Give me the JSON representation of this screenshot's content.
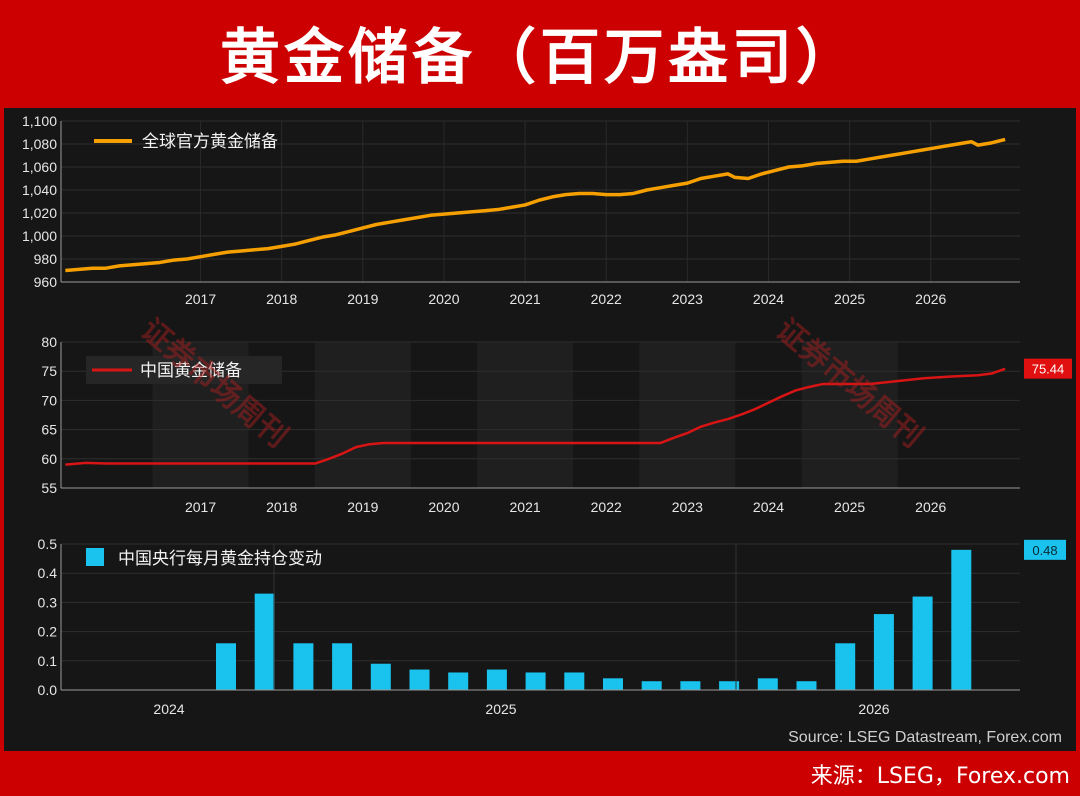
{
  "header": {
    "title": "黄金储备（百万盎司）"
  },
  "source_note": "Source: LSEG Datastream, Forex.com",
  "footer": {
    "credit": "来源：LSEG，Forex.com"
  },
  "watermark": "证券市场周刊",
  "colors": {
    "gold": "#f5a000",
    "red": "#d91414",
    "cyan": "#19c3ee",
    "page_bg": "#cc0000",
    "chart_bg": "#161616"
  },
  "chart_data": [
    {
      "type": "line",
      "series": [
        {
          "name": "全球官方黄金储备",
          "color": "#f5a000"
        }
      ],
      "x_ticks": [
        "2017",
        "2018",
        "2019",
        "2020",
        "2021",
        "2022",
        "2023",
        "2024",
        "2025",
        "2026"
      ],
      "y_ticks": [
        "960",
        "980",
        "1,000",
        "1,020",
        "1,040",
        "1,060",
        "1,080",
        "1,100"
      ],
      "ylim": [
        960,
        1100
      ],
      "points": [
        [
          "2016-05",
          970
        ],
        [
          "2016-07",
          971
        ],
        [
          "2016-09",
          972
        ],
        [
          "2016-11",
          972
        ],
        [
          "2017-01",
          974
        ],
        [
          "2017-03",
          975
        ],
        [
          "2017-05",
          976
        ],
        [
          "2017-07",
          977
        ],
        [
          "2017-09",
          979
        ],
        [
          "2017-11",
          980
        ],
        [
          "2018-01",
          982
        ],
        [
          "2018-03",
          984
        ],
        [
          "2018-05",
          986
        ],
        [
          "2018-07",
          987
        ],
        [
          "2018-09",
          988
        ],
        [
          "2018-11",
          989
        ],
        [
          "2019-01",
          991
        ],
        [
          "2019-03",
          993
        ],
        [
          "2019-05",
          996
        ],
        [
          "2019-07",
          999
        ],
        [
          "2019-09",
          1001
        ],
        [
          "2019-11",
          1004
        ],
        [
          "2020-01",
          1007
        ],
        [
          "2020-03",
          1010
        ],
        [
          "2020-05",
          1012
        ],
        [
          "2020-07",
          1014
        ],
        [
          "2020-09",
          1016
        ],
        [
          "2020-11",
          1018
        ],
        [
          "2021-01",
          1019
        ],
        [
          "2021-03",
          1020
        ],
        [
          "2021-05",
          1021
        ],
        [
          "2021-07",
          1022
        ],
        [
          "2021-09",
          1023
        ],
        [
          "2021-11",
          1025
        ],
        [
          "2022-01",
          1027
        ],
        [
          "2022-03",
          1031
        ],
        [
          "2022-05",
          1034
        ],
        [
          "2022-07",
          1036
        ],
        [
          "2022-09",
          1037
        ],
        [
          "2022-11",
          1037
        ],
        [
          "2023-01",
          1036
        ],
        [
          "2023-03",
          1036
        ],
        [
          "2023-05",
          1037
        ],
        [
          "2023-07",
          1040
        ],
        [
          "2023-09",
          1042
        ],
        [
          "2023-11",
          1044
        ],
        [
          "2024-01",
          1046
        ],
        [
          "2024-03",
          1050
        ],
        [
          "2024-05",
          1052
        ],
        [
          "2024-07",
          1054
        ],
        [
          "2024-08",
          1051
        ],
        [
          "2024-10",
          1050
        ],
        [
          "2024-12",
          1054
        ],
        [
          "2025-02",
          1057
        ],
        [
          "2025-04",
          1060
        ],
        [
          "2025-06",
          1061
        ],
        [
          "2025-08",
          1063
        ],
        [
          "2025-10",
          1064
        ],
        [
          "2025-12",
          1065
        ],
        [
          "2026-02",
          1065
        ],
        [
          "2026-04",
          1067
        ],
        [
          "2026-06",
          1069
        ],
        [
          "2026-08",
          1071
        ],
        [
          "2026-10",
          1073
        ],
        [
          "2026-12",
          1075
        ],
        [
          "2027-02",
          1077
        ],
        [
          "2027-04",
          1079
        ],
        [
          "2027-06",
          1081
        ],
        [
          "2027-07",
          1082
        ],
        [
          "2027-08",
          1079
        ],
        [
          "2027-10",
          1081
        ],
        [
          "2027-12",
          1084
        ]
      ]
    },
    {
      "type": "line",
      "series": [
        {
          "name": "中国黄金储备",
          "color": "#d91414"
        }
      ],
      "x_ticks": [
        "2017",
        "2018",
        "2019",
        "2020",
        "2021",
        "2022",
        "2023",
        "2024",
        "2025",
        "2026"
      ],
      "y_ticks": [
        "55",
        "60",
        "65",
        "70",
        "75",
        "80"
      ],
      "ylim": [
        55,
        80
      ],
      "last_value_label": "75.44",
      "points": [
        [
          "2016-05",
          59.0
        ],
        [
          "2016-08",
          59.3
        ],
        [
          "2016-11",
          59.2
        ],
        [
          "2017-03",
          59.2
        ],
        [
          "2017-07",
          59.2
        ],
        [
          "2017-11",
          59.2
        ],
        [
          "2018-03",
          59.2
        ],
        [
          "2018-07",
          59.2
        ],
        [
          "2018-11",
          59.2
        ],
        [
          "2019-03",
          59.2
        ],
        [
          "2019-06",
          59.2
        ],
        [
          "2019-08",
          60.0
        ],
        [
          "2019-10",
          60.9
        ],
        [
          "2019-12",
          62.0
        ],
        [
          "2020-02",
          62.5
        ],
        [
          "2020-04",
          62.7
        ],
        [
          "2020-08",
          62.7
        ],
        [
          "2021-01",
          62.7
        ],
        [
          "2021-08",
          62.7
        ],
        [
          "2022-03",
          62.7
        ],
        [
          "2022-10",
          62.7
        ],
        [
          "2023-05",
          62.7
        ],
        [
          "2023-09",
          62.7
        ],
        [
          "2023-11",
          63.6
        ],
        [
          "2024-01",
          64.4
        ],
        [
          "2024-03",
          65.5
        ],
        [
          "2024-05",
          66.2
        ],
        [
          "2024-07",
          66.8
        ],
        [
          "2024-09",
          67.6
        ],
        [
          "2024-11",
          68.5
        ],
        [
          "2025-01",
          69.6
        ],
        [
          "2025-03",
          70.7
        ],
        [
          "2025-05",
          71.7
        ],
        [
          "2025-07",
          72.3
        ],
        [
          "2025-09",
          72.8
        ],
        [
          "2025-12",
          72.8
        ],
        [
          "2026-04",
          72.8
        ],
        [
          "2026-08",
          73.3
        ],
        [
          "2026-12",
          73.8
        ],
        [
          "2027-04",
          74.1
        ],
        [
          "2027-08",
          74.3
        ],
        [
          "2027-10",
          74.6
        ],
        [
          "2027-12",
          75.4
        ]
      ]
    },
    {
      "type": "bar",
      "series": [
        {
          "name": "中国央行每月黄金持仓变动",
          "color": "#19c3ee"
        }
      ],
      "x_ticks": [
        "2024",
        "2025",
        "2026"
      ],
      "y_ticks": [
        "0.0",
        "0.1",
        "0.2",
        "0.3",
        "0.4",
        "0.5"
      ],
      "ylim": [
        0,
        0.5
      ],
      "last_value_label": "0.48",
      "values": [
        0.16,
        0.33,
        0.16,
        0.16,
        0.09,
        0.07,
        0.06,
        0.07,
        0.06,
        0.06,
        0.04,
        0.03,
        0.03,
        0.03,
        0.04,
        0.03,
        0.16,
        0.26,
        0.32,
        0.48
      ]
    }
  ]
}
